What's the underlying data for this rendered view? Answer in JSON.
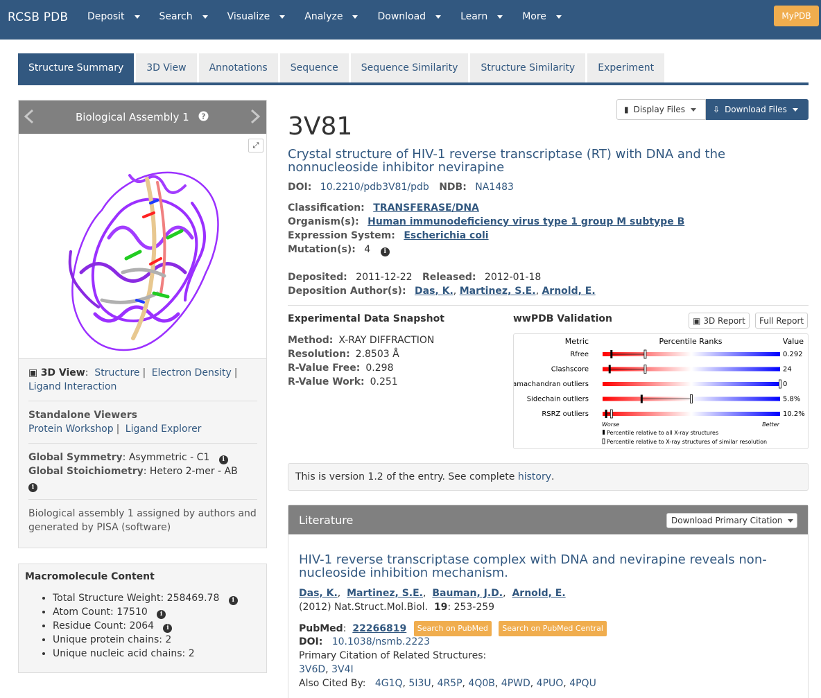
{
  "navbar": {
    "brand": "RCSB PDB",
    "items": [
      "Deposit",
      "Search",
      "Visualize",
      "Analyze",
      "Download",
      "Learn",
      "More"
    ],
    "mypdb": "MyPDB"
  },
  "tabs": [
    "Structure Summary",
    "3D View",
    "Annotations",
    "Sequence",
    "Sequence Similarity",
    "Structure Similarity",
    "Experiment"
  ],
  "assembly": {
    "title": "Biological Assembly 1",
    "expand_icon": "⤢"
  },
  "view3d": {
    "label": "3D View",
    "links": [
      "Structure",
      "Electron Density",
      "Ligand Interaction"
    ]
  },
  "standalone": {
    "label": "Standalone Viewers",
    "links": [
      "Protein Workshop",
      "Ligand Explorer"
    ]
  },
  "symmetry": {
    "sym_label": "Global Symmetry",
    "sym_value": ": Asymmetric - C1",
    "stoich_label": "Global Stoichiometry",
    "stoich_value": ": Hetero 2-mer -  AB"
  },
  "assembly_note": "Biological assembly 1  assigned by authors and generated by PISA (software)",
  "macro": {
    "title": "Macromolecule Content",
    "items": [
      "Total Structure Weight: 258469.78",
      "Atom Count: 17510",
      "Residue Count: 2064",
      "Unique protein chains: 2",
      "Unique nucleic acid chains: 2"
    ]
  },
  "files": {
    "display": "Display Files",
    "download": "Download Files"
  },
  "entry": {
    "id": "3V81",
    "title": "Crystal structure of HIV-1 reverse transcriptase (RT) with DNA and the nonnucleoside inhibitor nevirapine",
    "doi_label": "DOI:",
    "doi": "10.2210/pdb3V81/pdb",
    "ndb_label": "NDB:",
    "ndb": "NA1483",
    "classification_label": "Classification:",
    "classification": "TRANSFERASE/DNA",
    "organism_label": "Organism(s):",
    "organism": "Human immunodeficiency virus type 1 group M subtype B",
    "expression_label": "Expression System:",
    "expression": "Escherichia coli",
    "mutation_label": "Mutation(s):",
    "mutation": "4",
    "deposited_label": "Deposited:",
    "deposited": "2011-12-22",
    "released_label": "Released:",
    "released": "2012-01-18",
    "authors_label": "Deposition Author(s):",
    "authors": [
      "Das, K.",
      "Martinez, S.E.",
      "Arnold, E."
    ]
  },
  "snapshot": {
    "title": "Experimental Data Snapshot",
    "method_label": "Method:",
    "method": "X-RAY DIFFRACTION",
    "resolution_label": "Resolution:",
    "resolution": "2.8503  Å",
    "rfree_label": "R-Value Free:",
    "rfree": "0.298",
    "rwork_label": "R-Value Work:",
    "rwork": "0.251"
  },
  "validation": {
    "title": "wwPDB Validation",
    "report3d": "3D Report",
    "full": "Full Report",
    "header_metric": "Metric",
    "header_ranks": "Percentile Ranks",
    "header_value": "Value",
    "rows": [
      {
        "metric": "Rfree",
        "value": "0.292",
        "all": 0.05,
        "similar": 0.24
      },
      {
        "metric": "Clashscore",
        "value": "24",
        "all": 0.04,
        "similar": 0.24
      },
      {
        "metric": "Ramachandran outliers",
        "value": "0",
        "all": 1.0,
        "similar": 1.0
      },
      {
        "metric": "Sidechain outliers",
        "value": "5.8%",
        "all": 0.22,
        "similar": 0.5
      },
      {
        "metric": "RSRZ outliers",
        "value": "10.2%",
        "all": 0.02,
        "similar": 0.05
      }
    ],
    "worse": "Worse",
    "better": "Better",
    "legend_all": "Percentile relative to all X-ray structures",
    "legend_similar": "Percentile relative to X-ray structures of similar resolution"
  },
  "version": {
    "text": "This is version 1.2 of the entry. See complete ",
    "link": "history",
    "end": "."
  },
  "literature": {
    "header": "Literature",
    "cite_button": "Download Primary Citation",
    "title": "HIV-1 reverse transcriptase complex with DNA and nevirapine reveals non-nucleoside inhibition mechanism.",
    "authors": [
      "Das, K.",
      "Martinez, S.E.",
      "Bauman, J.D.",
      "Arnold, E."
    ],
    "journal": "(2012) Nat.Struct.Mol.Biol. ",
    "volume": "19",
    "pages": ": 253-259",
    "pubmed_label": "PubMed",
    "pubmed": "22266819",
    "pubmed_btn": "Search on PubMed",
    "pmc_btn": "Search on PubMed Central",
    "doi_label": "DOI:",
    "doi": "10.1038/nsmb.2223",
    "related_label": "Primary Citation of Related Structures:",
    "related": [
      "3V6D",
      "3V4I"
    ],
    "also_label": "Also Cited By:",
    "also": [
      "4G1Q",
      "5I3U",
      "4R5P",
      "4Q0B",
      "4PWD",
      "4PUO",
      "4PQU"
    ]
  }
}
